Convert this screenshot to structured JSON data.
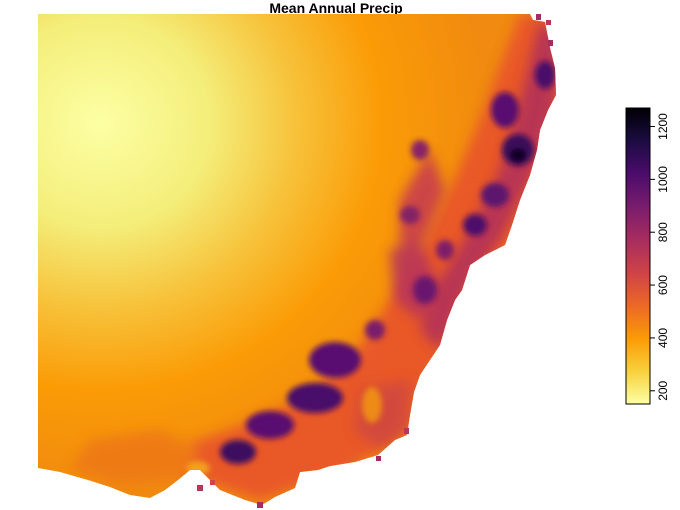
{
  "title": "Mean Annual Precip",
  "chart_data": {
    "type": "heatmap",
    "title": "Mean Annual Precip",
    "xlabel": "",
    "ylabel": "",
    "colorscale": {
      "name": "inferno-reversed",
      "range": [
        150,
        1270
      ],
      "stops": [
        "#fcffa4",
        "#f7d13d",
        "#fb9b06",
        "#ed6925",
        "#cf4446",
        "#a52c60",
        "#781c6d",
        "#4a0c6b",
        "#1b0c41",
        "#000004"
      ],
      "ticks": [
        200,
        400,
        600,
        800,
        1000,
        1200
      ],
      "tick_labels": [
        "200",
        "400",
        "600",
        "800",
        "1000",
        "1200"
      ]
    },
    "map_extent": "south-east australia",
    "value_description": "mean annual precipitation (mm)"
  }
}
